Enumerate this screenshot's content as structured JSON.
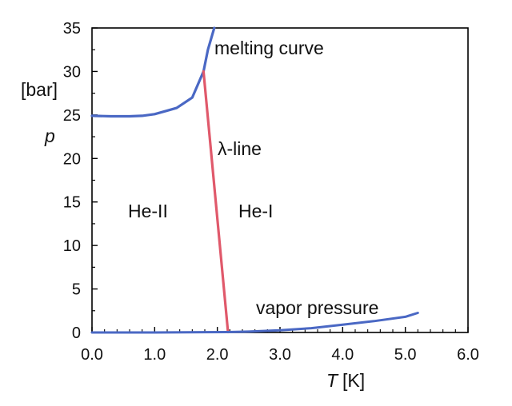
{
  "chart_data": {
    "type": "line",
    "title": "",
    "xlabel": {
      "symbol": "T",
      "unit": "[K]"
    },
    "ylabel": {
      "symbol": "p",
      "unit": "[bar]"
    },
    "xlim": [
      0,
      6
    ],
    "ylim": [
      0,
      35
    ],
    "xticks": [
      "0.0",
      "1.0",
      "2.0",
      "3.0",
      "4.0",
      "5.0",
      "6.0"
    ],
    "yticks": [
      "0",
      "5",
      "10",
      "15",
      "20",
      "25",
      "30",
      "35"
    ],
    "grid": false,
    "series": [
      {
        "key": "melting",
        "color": "#4a68c4",
        "x": [
          0.0,
          0.3,
          0.6,
          0.8,
          1.0,
          1.2,
          1.35,
          1.6,
          1.78,
          1.85,
          1.95
        ],
        "y": [
          24.9,
          24.85,
          24.85,
          24.9,
          25.1,
          25.5,
          25.8,
          27.0,
          30.0,
          32.5,
          35.0
        ]
      },
      {
        "key": "lambda",
        "color": "#e0596b",
        "x": [
          1.78,
          2.17
        ],
        "y": [
          30.0,
          0.05
        ]
      },
      {
        "key": "vapor",
        "color": "#4a68c4",
        "x": [
          0.0,
          1.0,
          2.17,
          2.5,
          3.0,
          3.5,
          4.0,
          4.5,
          5.0,
          5.2
        ],
        "y": [
          0.0,
          0.0,
          0.05,
          0.1,
          0.25,
          0.5,
          0.9,
          1.3,
          1.8,
          2.25
        ]
      }
    ],
    "annotations": {
      "melting": "melting curve",
      "lambda": "λ-line",
      "vapor": "vapor pressure",
      "he2": "He-II",
      "he1": "He-I"
    }
  }
}
